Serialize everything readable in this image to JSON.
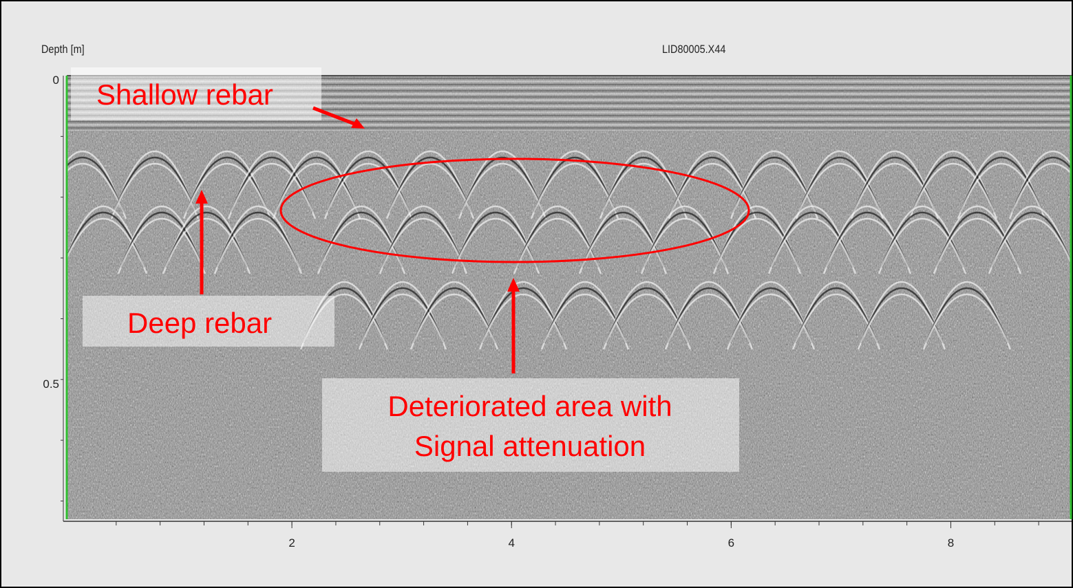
{
  "window": {
    "file_title": "LID80005.X44"
  },
  "axes": {
    "y_label": "Depth [m]",
    "y_ticks": [
      {
        "value": 0,
        "label": "0"
      },
      {
        "value": 0.5,
        "label": "0.5"
      }
    ],
    "x_ticks": [
      {
        "value": 2,
        "label": "2"
      },
      {
        "value": 4,
        "label": "4"
      },
      {
        "value": 6,
        "label": "6"
      },
      {
        "value": 8,
        "label": "8"
      }
    ],
    "x_range": [
      -0.05,
      9.1
    ],
    "y_range": [
      0,
      0.73
    ]
  },
  "annotations": {
    "shallow_rebar": "Shallow rebar",
    "deep_rebar": "Deep rebar",
    "deteriorated_line1": "Deteriorated area with",
    "deteriorated_line2": "Signal attenuation"
  },
  "colors": {
    "annotation": "#ff0000",
    "border_left": "#2fbf2f",
    "background": "#e8e8e8"
  }
}
